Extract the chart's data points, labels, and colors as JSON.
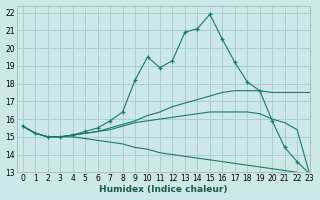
{
  "xlabel": "Humidex (Indice chaleur)",
  "background_color": "#cce8e8",
  "grid_color": "#aacece",
  "line_color": "#1a7a6a",
  "xlim": [
    -0.5,
    23
  ],
  "ylim": [
    13,
    22.4
  ],
  "xticks": [
    0,
    1,
    2,
    3,
    4,
    5,
    6,
    7,
    8,
    9,
    10,
    11,
    12,
    13,
    14,
    15,
    16,
    17,
    18,
    19,
    20,
    21,
    22,
    23
  ],
  "yticks": [
    13,
    14,
    15,
    16,
    17,
    18,
    19,
    20,
    21,
    22
  ],
  "series": [
    {
      "x": [
        0,
        1,
        2,
        3,
        4,
        5,
        6,
        7,
        8,
        9,
        10,
        11,
        12,
        13,
        14,
        15,
        16,
        17,
        18,
        19,
        20,
        21,
        22,
        23
      ],
      "y": [
        15.6,
        15.2,
        15.0,
        15.0,
        15.1,
        15.3,
        15.5,
        15.9,
        16.4,
        18.2,
        19.5,
        18.9,
        19.3,
        20.9,
        21.1,
        21.9,
        20.5,
        19.2,
        18.1,
        17.6,
        15.9,
        14.4,
        13.6,
        12.9
      ],
      "has_marker": true
    },
    {
      "x": [
        0,
        1,
        2,
        3,
        4,
        5,
        6,
        7,
        8,
        9,
        10,
        11,
        12,
        13,
        14,
        15,
        16,
        17,
        18,
        19,
        20,
        21,
        22,
        23
      ],
      "y": [
        15.6,
        15.2,
        15.0,
        15.0,
        15.1,
        15.2,
        15.3,
        15.5,
        15.7,
        15.9,
        16.2,
        16.4,
        16.7,
        16.9,
        17.1,
        17.3,
        17.5,
        17.6,
        17.6,
        17.6,
        17.5,
        17.5,
        17.5,
        17.5
      ],
      "has_marker": false
    },
    {
      "x": [
        0,
        1,
        2,
        3,
        4,
        5,
        6,
        7,
        8,
        9,
        10,
        11,
        12,
        13,
        14,
        15,
        16,
        17,
        18,
        19,
        20,
        21,
        22,
        23
      ],
      "y": [
        15.6,
        15.2,
        15.0,
        15.0,
        15.0,
        14.9,
        14.8,
        14.7,
        14.6,
        14.4,
        14.3,
        14.1,
        14.0,
        13.9,
        13.8,
        13.7,
        13.6,
        13.5,
        13.4,
        13.3,
        13.2,
        13.1,
        13.0,
        12.9
      ],
      "has_marker": false
    },
    {
      "x": [
        0,
        1,
        2,
        3,
        4,
        5,
        6,
        7,
        8,
        9,
        10,
        11,
        12,
        13,
        14,
        15,
        16,
        17,
        18,
        19,
        20,
        21,
        22,
        23
      ],
      "y": [
        15.6,
        15.2,
        15.0,
        15.0,
        15.1,
        15.2,
        15.3,
        15.4,
        15.6,
        15.8,
        15.9,
        16.0,
        16.1,
        16.2,
        16.3,
        16.4,
        16.4,
        16.4,
        16.4,
        16.3,
        16.0,
        15.8,
        15.4,
        12.9
      ],
      "has_marker": false
    }
  ]
}
